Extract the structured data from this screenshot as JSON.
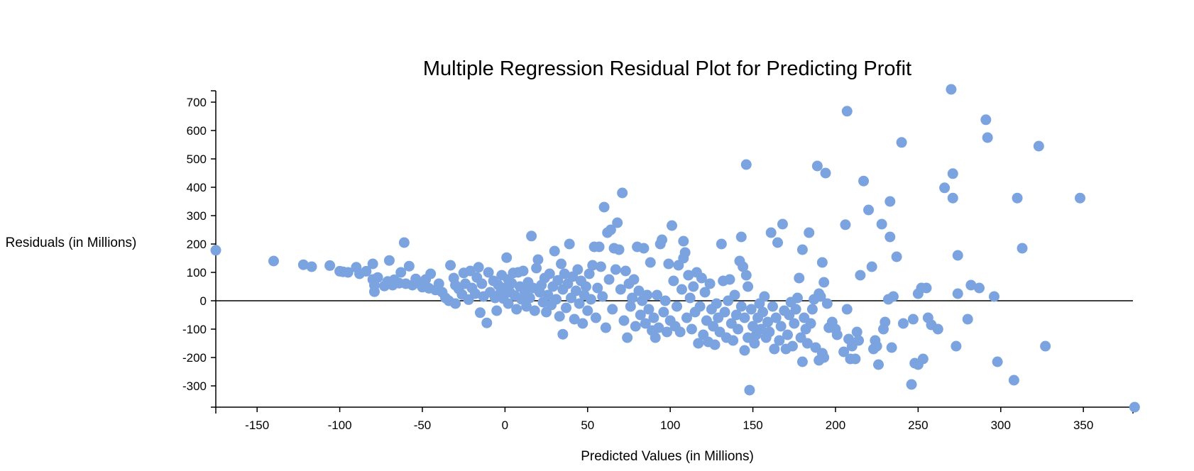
{
  "chart_data": {
    "type": "scatter",
    "title": "Multiple Regression Residual Plot for Predicting Profit",
    "xlabel": "Predicted Values (in Millions)",
    "ylabel": "Residuals (in Millions)",
    "xlim": [
      -175,
      380
    ],
    "ylim": [
      -375,
      740
    ],
    "x_ticks": [
      -150,
      -100,
      -50,
      0,
      50,
      100,
      150,
      200,
      250,
      300,
      350
    ],
    "y_ticks": [
      -300,
      -200,
      -100,
      0,
      100,
      200,
      300,
      400,
      500,
      600,
      700
    ],
    "reference_line": 0,
    "grid": false,
    "legend": "none",
    "point_color": "#7aa3e0",
    "points": [
      [
        -175,
        178
      ],
      [
        -140,
        140
      ],
      [
        -122,
        127
      ],
      [
        -117,
        120
      ],
      [
        -106,
        124
      ],
      [
        -100,
        104
      ],
      [
        -98,
        102
      ],
      [
        -95,
        100
      ],
      [
        -90,
        118
      ],
      [
        -88,
        95
      ],
      [
        -84,
        104
      ],
      [
        -80,
        130
      ],
      [
        -80,
        75
      ],
      [
        -79,
        55
      ],
      [
        -79,
        32
      ],
      [
        -77,
        82
      ],
      [
        -73,
        52
      ],
      [
        -71,
        68
      ],
      [
        -70,
        142
      ],
      [
        -68,
        55
      ],
      [
        -67,
        74
      ],
      [
        -64,
        62
      ],
      [
        -63,
        100
      ],
      [
        -61,
        205
      ],
      [
        -60,
        60
      ],
      [
        -58,
        122
      ],
      [
        -56,
        55
      ],
      [
        -54,
        77
      ],
      [
        -52,
        62
      ],
      [
        -50,
        48
      ],
      [
        -48,
        75
      ],
      [
        -46,
        44
      ],
      [
        -45,
        95
      ],
      [
        -42,
        38
      ],
      [
        -40,
        60
      ],
      [
        -38,
        30
      ],
      [
        -36,
        10
      ],
      [
        -34,
        0
      ],
      [
        -33,
        125
      ],
      [
        -31,
        80
      ],
      [
        -30,
        55
      ],
      [
        -30,
        -10
      ],
      [
        -28,
        42
      ],
      [
        -26,
        22
      ],
      [
        -25,
        98
      ],
      [
        -24,
        60
      ],
      [
        -22,
        4
      ],
      [
        -21,
        105
      ],
      [
        -20,
        45
      ],
      [
        -18,
        25
      ],
      [
        -17,
        82
      ],
      [
        -16,
        118
      ],
      [
        -15,
        -42
      ],
      [
        -14,
        60
      ],
      [
        -13,
        15
      ],
      [
        -11,
        -78
      ],
      [
        -10,
        100
      ],
      [
        -9,
        30
      ],
      [
        -7,
        70
      ],
      [
        -6,
        10
      ],
      [
        -5,
        -35
      ],
      [
        -4,
        55
      ],
      [
        -3,
        25
      ],
      [
        -2,
        90
      ],
      [
        -1,
        8
      ],
      [
        0,
        45
      ],
      [
        1,
        152
      ],
      [
        2,
        75
      ],
      [
        2,
        -10
      ],
      [
        3,
        30
      ],
      [
        4,
        62
      ],
      [
        5,
        98
      ],
      [
        6,
        18
      ],
      [
        7,
        -30
      ],
      [
        8,
        100
      ],
      [
        9,
        50
      ],
      [
        10,
        5
      ],
      [
        11,
        105
      ],
      [
        12,
        32
      ],
      [
        13,
        -20
      ],
      [
        14,
        65
      ],
      [
        15,
        10
      ],
      [
        16,
        228
      ],
      [
        17,
        45
      ],
      [
        18,
        -35
      ],
      [
        19,
        115
      ],
      [
        20,
        145
      ],
      [
        21,
        30
      ],
      [
        22,
        55
      ],
      [
        23,
        -5
      ],
      [
        24,
        80
      ],
      [
        25,
        -40
      ],
      [
        26,
        20
      ],
      [
        27,
        95
      ],
      [
        28,
        -15
      ],
      [
        29,
        50
      ],
      [
        30,
        175
      ],
      [
        31,
        5
      ],
      [
        32,
        72
      ],
      [
        33,
        -55
      ],
      [
        34,
        130
      ],
      [
        35,
        40
      ],
      [
        35,
        -118
      ],
      [
        36,
        95
      ],
      [
        37,
        -25
      ],
      [
        38,
        60
      ],
      [
        39,
        200
      ],
      [
        40,
        10
      ],
      [
        41,
        85
      ],
      [
        42,
        -65
      ],
      [
        43,
        35
      ],
      [
        44,
        110
      ],
      [
        45,
        -10
      ],
      [
        46,
        70
      ],
      [
        47,
        -80
      ],
      [
        48,
        20
      ],
      [
        49,
        50
      ],
      [
        50,
        -35
      ],
      [
        51,
        95
      ],
      [
        52,
        5
      ],
      [
        53,
        125
      ],
      [
        54,
        190
      ],
      [
        55,
        -60
      ],
      [
        56,
        45
      ],
      [
        57,
        190
      ],
      [
        58,
        120
      ],
      [
        59,
        15
      ],
      [
        60,
        330
      ],
      [
        61,
        -95
      ],
      [
        62,
        240
      ],
      [
        63,
        75
      ],
      [
        64,
        250
      ],
      [
        65,
        -30
      ],
      [
        66,
        185
      ],
      [
        67,
        110
      ],
      [
        68,
        275
      ],
      [
        69,
        180
      ],
      [
        70,
        40
      ],
      [
        71,
        380
      ],
      [
        72,
        -70
      ],
      [
        73,
        105
      ],
      [
        74,
        -130
      ],
      [
        75,
        60
      ],
      [
        76,
        -20
      ],
      [
        77,
        10
      ],
      [
        78,
        75
      ],
      [
        79,
        -90
      ],
      [
        80,
        190
      ],
      [
        81,
        35
      ],
      [
        82,
        -50
      ],
      [
        83,
        0
      ],
      [
        84,
        185
      ],
      [
        85,
        -80
      ],
      [
        86,
        20
      ],
      [
        87,
        -30
      ],
      [
        88,
        135
      ],
      [
        89,
        -105
      ],
      [
        90,
        -60
      ],
      [
        91,
        -130
      ],
      [
        92,
        20
      ],
      [
        93,
        -95
      ],
      [
        94,
        200
      ],
      [
        95,
        215
      ],
      [
        96,
        -40
      ],
      [
        97,
        0
      ],
      [
        98,
        -110
      ],
      [
        99,
        130
      ],
      [
        100,
        -70
      ],
      [
        101,
        265
      ],
      [
        102,
        70
      ],
      [
        103,
        -90
      ],
      [
        104,
        -20
      ],
      [
        105,
        125
      ],
      [
        106,
        -110
      ],
      [
        107,
        40
      ],
      [
        108,
        210
      ],
      [
        108,
        150
      ],
      [
        109,
        170
      ],
      [
        110,
        -60
      ],
      [
        111,
        90
      ],
      [
        112,
        10
      ],
      [
        113,
        -100
      ],
      [
        114,
        50
      ],
      [
        115,
        -40
      ],
      [
        116,
        100
      ],
      [
        117,
        -150
      ],
      [
        118,
        -20
      ],
      [
        119,
        80
      ],
      [
        120,
        -120
      ],
      [
        121,
        30
      ],
      [
        122,
        -70
      ],
      [
        123,
        -145
      ],
      [
        124,
        60
      ],
      [
        125,
        -30
      ],
      [
        126,
        -90
      ],
      [
        127,
        -155
      ],
      [
        128,
        -10
      ],
      [
        129,
        -60
      ],
      [
        130,
        -110
      ],
      [
        131,
        200
      ],
      [
        132,
        70
      ],
      [
        133,
        -40
      ],
      [
        134,
        -130
      ],
      [
        135,
        0
      ],
      [
        136,
        75
      ],
      [
        137,
        -80
      ],
      [
        138,
        -140
      ],
      [
        139,
        20
      ],
      [
        140,
        -50
      ],
      [
        141,
        -100
      ],
      [
        142,
        140
      ],
      [
        143,
        225
      ],
      [
        143,
        -20
      ],
      [
        144,
        120
      ],
      [
        145,
        -60
      ],
      [
        145,
        -175
      ],
      [
        146,
        480
      ],
      [
        146,
        90
      ],
      [
        147,
        -130
      ],
      [
        147,
        50
      ],
      [
        148,
        -315
      ],
      [
        149,
        -30
      ],
      [
        150,
        -90
      ],
      [
        151,
        -150
      ],
      [
        152,
        -120
      ],
      [
        153,
        -60
      ],
      [
        154,
        -10
      ],
      [
        155,
        -100
      ],
      [
        156,
        -40
      ],
      [
        157,
        15
      ],
      [
        158,
        -130
      ],
      [
        159,
        -75
      ],
      [
        160,
        -110
      ],
      [
        161,
        240
      ],
      [
        162,
        -20
      ],
      [
        163,
        -170
      ],
      [
        164,
        -60
      ],
      [
        165,
        205
      ],
      [
        166,
        -140
      ],
      [
        167,
        -90
      ],
      [
        168,
        270
      ],
      [
        169,
        -35
      ],
      [
        170,
        -170
      ],
      [
        171,
        -120
      ],
      [
        172,
        -50
      ],
      [
        173,
        -5
      ],
      [
        174,
        -160
      ],
      [
        175,
        -80
      ],
      [
        176,
        -30
      ],
      [
        177,
        10
      ],
      [
        178,
        80
      ],
      [
        179,
        -130
      ],
      [
        180,
        180
      ],
      [
        180,
        -215
      ],
      [
        181,
        -60
      ],
      [
        182,
        -100
      ],
      [
        183,
        -150
      ],
      [
        184,
        240
      ],
      [
        185,
        -80
      ],
      [
        186,
        -30
      ],
      [
        187,
        5
      ],
      [
        188,
        -165
      ],
      [
        189,
        475
      ],
      [
        190,
        -210
      ],
      [
        190,
        25
      ],
      [
        191,
        15
      ],
      [
        192,
        -185
      ],
      [
        192,
        135
      ],
      [
        193,
        -200
      ],
      [
        193,
        65
      ],
      [
        194,
        450
      ],
      [
        195,
        -10
      ],
      [
        196,
        -95
      ],
      [
        198,
        -75
      ],
      [
        200,
        -100
      ],
      [
        201,
        -120
      ],
      [
        205,
        -180
      ],
      [
        206,
        268
      ],
      [
        207,
        -30
      ],
      [
        207,
        668
      ],
      [
        208,
        -135
      ],
      [
        209,
        -205
      ],
      [
        210,
        -160
      ],
      [
        212,
        -205
      ],
      [
        213,
        -110
      ],
      [
        214,
        -140
      ],
      [
        215,
        90
      ],
      [
        217,
        422
      ],
      [
        220,
        320
      ],
      [
        222,
        120
      ],
      [
        223,
        -170
      ],
      [
        224,
        -140
      ],
      [
        225,
        -160
      ],
      [
        226,
        -225
      ],
      [
        228,
        270
      ],
      [
        229,
        -100
      ],
      [
        230,
        -75
      ],
      [
        232,
        5
      ],
      [
        233,
        350
      ],
      [
        233,
        225
      ],
      [
        234,
        -165
      ],
      [
        235,
        15
      ],
      [
        237,
        155
      ],
      [
        240,
        558
      ],
      [
        241,
        -80
      ],
      [
        246,
        -295
      ],
      [
        247,
        -65
      ],
      [
        248,
        -220
      ],
      [
        250,
        25
      ],
      [
        250,
        -225
      ],
      [
        252,
        45
      ],
      [
        253,
        -205
      ],
      [
        255,
        45
      ],
      [
        256,
        -60
      ],
      [
        258,
        -85
      ],
      [
        262,
        -100
      ],
      [
        266,
        398
      ],
      [
        270,
        745
      ],
      [
        271,
        448
      ],
      [
        271,
        362
      ],
      [
        273,
        -160
      ],
      [
        274,
        160
      ],
      [
        274,
        25
      ],
      [
        280,
        -65
      ],
      [
        282,
        55
      ],
      [
        287,
        45
      ],
      [
        291,
        638
      ],
      [
        292,
        575
      ],
      [
        296,
        15
      ],
      [
        298,
        -215
      ],
      [
        308,
        -280
      ],
      [
        310,
        362
      ],
      [
        313,
        185
      ],
      [
        323,
        545
      ],
      [
        327,
        -160
      ],
      [
        348,
        362
      ],
      [
        381,
        -375
      ]
    ]
  }
}
